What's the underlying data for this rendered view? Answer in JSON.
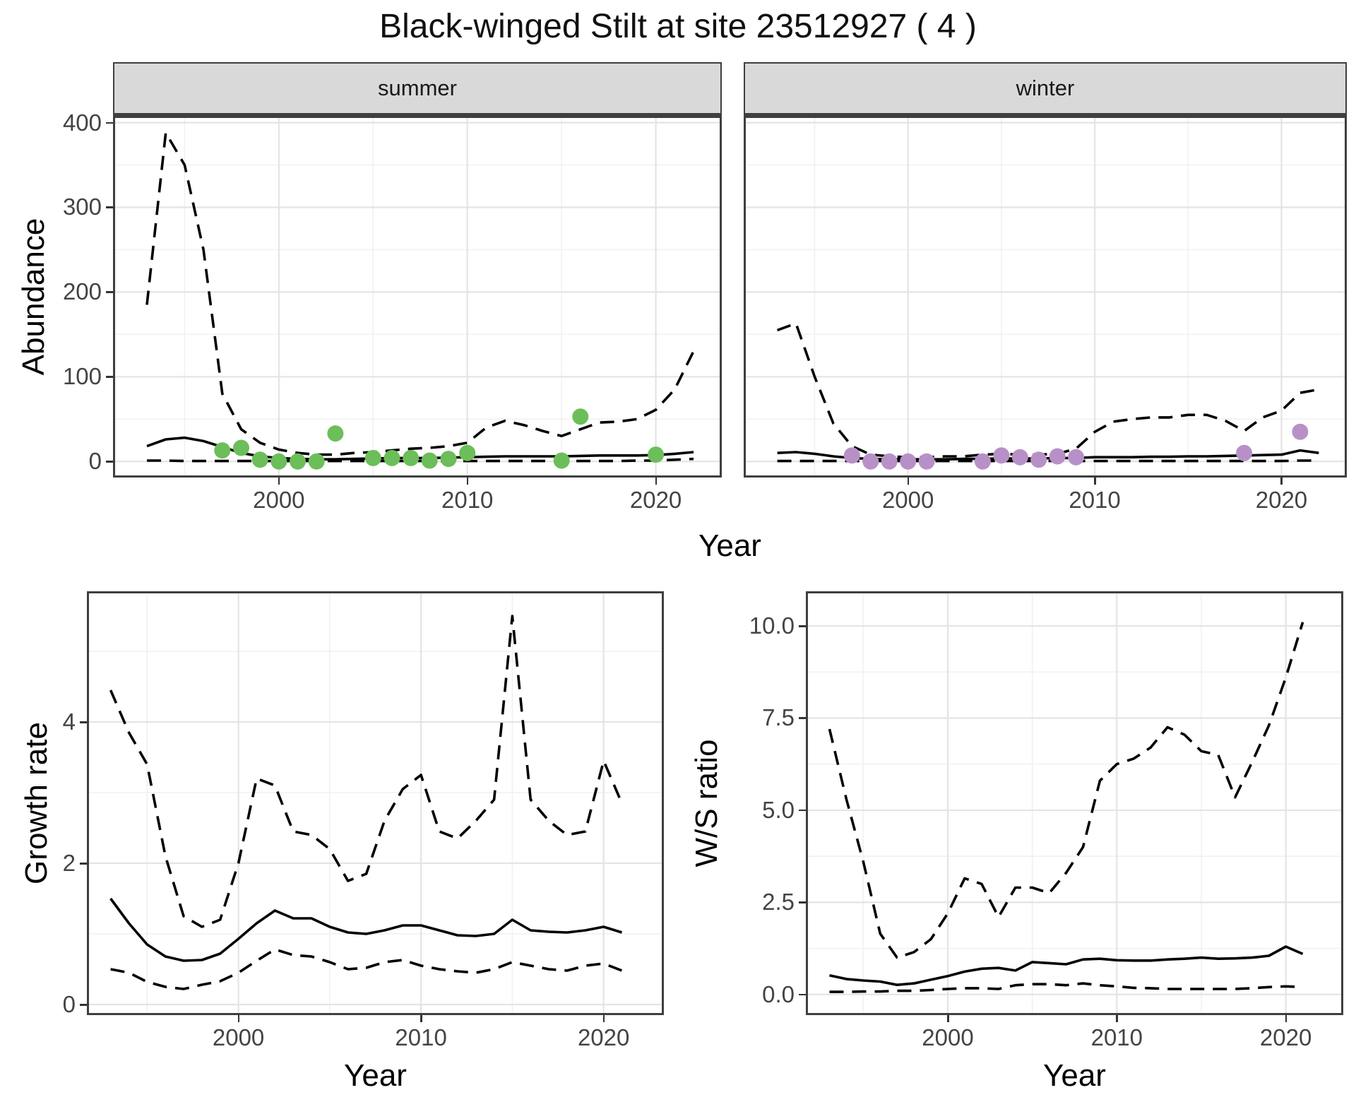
{
  "title": "Black-winged Stilt at site 23512927 ( 4 )",
  "top": {
    "ylabel": "Abundance",
    "xlabel": "Year",
    "facets": [
      "summer",
      "winter"
    ]
  },
  "bottom_left": {
    "ylabel": "Growth rate",
    "xlabel": "Year"
  },
  "bottom_right": {
    "ylabel": "W/S ratio",
    "xlabel": "Year"
  },
  "style": {
    "line_color": "#000000",
    "grid_major": "#E4E4E4",
    "grid_minor": "#F1F1F1",
    "panel_border": "#3f3f3f",
    "strip_bg": "#D9D9D9",
    "tick_color": "#333333",
    "tick_label_color": "#444444",
    "summer_point": "#6CBE5A",
    "winter_point": "#B890C8"
  },
  "chart_data": [
    {
      "id": "abundance_summer",
      "type": "line",
      "facet": "summer",
      "xlabel": "Year",
      "ylabel": "Abundance",
      "xlim": [
        1991.2,
        2023.5
      ],
      "ylim": [
        -19,
        408
      ],
      "x_ticks": [
        2000,
        2010,
        2020
      ],
      "x_tick_labels": [
        "2000",
        "2010",
        "2020"
      ],
      "x_minor": [
        1995,
        2005,
        2015
      ],
      "y_ticks": [
        0,
        100,
        200,
        300,
        400
      ],
      "y_tick_labels": [
        "0",
        "100",
        "200",
        "300",
        "400"
      ],
      "y_minor": [
        50,
        150,
        250,
        350
      ],
      "y_axis": true,
      "x": [
        1993,
        1994,
        1995,
        1996,
        1997,
        1998,
        1999,
        2000,
        2001,
        2002,
        2003,
        2004,
        2005,
        2006,
        2007,
        2008,
        2009,
        2010,
        2011,
        2012,
        2013,
        2014,
        2015,
        2016,
        2017,
        2018,
        2019,
        2020,
        2021,
        2022
      ],
      "series": [
        {
          "name": "lower_ci",
          "style": "dashed",
          "values": [
            1,
            1,
            0.5,
            0.5,
            0.5,
            0.5,
            0.5,
            0.5,
            0.5,
            0.5,
            0.5,
            0.5,
            0.5,
            0.5,
            0.5,
            0.5,
            0.5,
            0.5,
            0.5,
            0.5,
            0.5,
            0.5,
            0.5,
            0.5,
            0.5,
            0.5,
            1,
            1,
            2,
            3
          ]
        },
        {
          "name": "upper_ci",
          "style": "dashed",
          "values": [
            185,
            388,
            350,
            250,
            80,
            38,
            22,
            14,
            10,
            8,
            8,
            10,
            11,
            13,
            15,
            16,
            18,
            22,
            40,
            48,
            43,
            36,
            30,
            38,
            46,
            47,
            50,
            61,
            85,
            130
          ]
        },
        {
          "name": "median",
          "style": "solid",
          "values": [
            18,
            26,
            28,
            24,
            17,
            10,
            6,
            4,
            3,
            2.5,
            2.5,
            3,
            3.5,
            4,
            4,
            4,
            4.5,
            5,
            5.5,
            6,
            6,
            6,
            6,
            6.5,
            7,
            7,
            7,
            7.5,
            9,
            11
          ]
        }
      ],
      "points": {
        "name": "observed_counts",
        "color_key": "summer_point",
        "x": [
          1997,
          1998,
          1999,
          2000,
          2001,
          2002,
          2003,
          2005,
          2006,
          2007,
          2008,
          2009,
          2010,
          2015,
          2016,
          2020
        ],
        "y": [
          13,
          16,
          2,
          0,
          0,
          0,
          33,
          4,
          4,
          4,
          1,
          3,
          10,
          1,
          53,
          8
        ]
      }
    },
    {
      "id": "abundance_winter",
      "type": "line",
      "facet": "winter",
      "xlabel": "Year",
      "ylabel": "Abundance",
      "xlim": [
        1991.2,
        2023.5
      ],
      "ylim": [
        -19,
        408
      ],
      "x_ticks": [
        2000,
        2010,
        2020
      ],
      "x_tick_labels": [
        "2000",
        "2010",
        "2020"
      ],
      "x_minor": [
        1995,
        2005,
        2015
      ],
      "y_ticks": [
        0,
        100,
        200,
        300,
        400
      ],
      "y_tick_labels": [
        "0",
        "100",
        "200",
        "300",
        "400"
      ],
      "y_minor": [
        50,
        150,
        250,
        350
      ],
      "y_axis": false,
      "x": [
        1993,
        1994,
        1995,
        1996,
        1997,
        1998,
        1999,
        2000,
        2001,
        2002,
        2003,
        2004,
        2005,
        2006,
        2007,
        2008,
        2009,
        2010,
        2011,
        2012,
        2013,
        2014,
        2015,
        2016,
        2017,
        2018,
        2019,
        2020,
        2021,
        2022
      ],
      "series": [
        {
          "name": "lower_ci",
          "style": "dashed",
          "values": [
            0.5,
            0.5,
            0.5,
            0.5,
            0.5,
            0.5,
            0.5,
            0.5,
            0.5,
            0.5,
            0.5,
            0.5,
            0.5,
            0.5,
            0.5,
            0.5,
            0.5,
            0.5,
            0.5,
            0.5,
            0.5,
            0.5,
            0.5,
            0.5,
            0.5,
            0.5,
            0.5,
            0.5,
            1,
            1
          ]
        },
        {
          "name": "upper_ci",
          "style": "dashed",
          "values": [
            155,
            163,
            100,
            45,
            18,
            8,
            6,
            5,
            5,
            6,
            6,
            8,
            9,
            8,
            8,
            9,
            15,
            35,
            47,
            50,
            52,
            52,
            55,
            55,
            48,
            36,
            52,
            60,
            81,
            85
          ]
        },
        {
          "name": "median",
          "style": "solid",
          "values": [
            10,
            11,
            9,
            6,
            4,
            3,
            2.5,
            2.5,
            2.5,
            2.5,
            3,
            3,
            3.5,
            3.5,
            3.5,
            4,
            4,
            5,
            5,
            5,
            5.5,
            5.5,
            6,
            6,
            6.5,
            7,
            7.5,
            8,
            13,
            10
          ]
        }
      ],
      "points": {
        "name": "observed_counts",
        "color_key": "winter_point",
        "x": [
          1997,
          1998,
          1999,
          2000,
          2001,
          2004,
          2005,
          2006,
          2007,
          2008,
          2009,
          2018,
          2021
        ],
        "y": [
          7,
          0,
          0,
          0,
          0,
          0,
          7,
          5,
          2,
          6,
          5,
          10,
          35
        ]
      }
    },
    {
      "id": "growth",
      "type": "line",
      "xlabel": "Year",
      "ylabel": "Growth rate",
      "xlim": [
        1991.7,
        2023.3
      ],
      "ylim": [
        -0.15,
        5.85
      ],
      "x_ticks": [
        2000,
        2010,
        2020
      ],
      "x_tick_labels": [
        "2000",
        "2010",
        "2020"
      ],
      "x_minor": [
        1995,
        2005,
        2015
      ],
      "y_ticks": [
        0,
        2,
        4
      ],
      "y_tick_labels": [
        "0",
        "2",
        "4"
      ],
      "y_minor": [
        1,
        3,
        5
      ],
      "y_axis": true,
      "x": [
        1993,
        1994,
        1995,
        1996,
        1997,
        1998,
        1999,
        2000,
        2001,
        2002,
        2003,
        2004,
        2005,
        2006,
        2007,
        2008,
        2009,
        2010,
        2011,
        2012,
        2013,
        2014,
        2015,
        2016,
        2017,
        2018,
        2019,
        2020,
        2021
      ],
      "series": [
        {
          "name": "lower_ci",
          "style": "dashed",
          "values": [
            0.5,
            0.45,
            0.32,
            0.25,
            0.22,
            0.28,
            0.33,
            0.45,
            0.62,
            0.78,
            0.7,
            0.68,
            0.6,
            0.5,
            0.52,
            0.6,
            0.63,
            0.55,
            0.5,
            0.47,
            0.45,
            0.5,
            0.6,
            0.55,
            0.5,
            0.48,
            0.55,
            0.58,
            0.48
          ]
        },
        {
          "name": "upper_ci",
          "style": "dashed",
          "values": [
            4.45,
            3.85,
            3.4,
            2.1,
            1.25,
            1.1,
            1.2,
            2.0,
            3.2,
            3.1,
            2.45,
            2.4,
            2.2,
            1.75,
            1.85,
            2.6,
            3.05,
            3.25,
            2.45,
            2.35,
            2.6,
            2.9,
            5.5,
            2.9,
            2.6,
            2.4,
            2.45,
            3.45,
            2.85
          ]
        },
        {
          "name": "median",
          "style": "solid",
          "values": [
            1.5,
            1.15,
            0.85,
            0.68,
            0.62,
            0.63,
            0.72,
            0.93,
            1.15,
            1.33,
            1.22,
            1.22,
            1.1,
            1.02,
            1.0,
            1.05,
            1.12,
            1.12,
            1.05,
            0.98,
            0.97,
            1.0,
            1.2,
            1.05,
            1.03,
            1.02,
            1.05,
            1.1,
            1.02
          ]
        }
      ]
    },
    {
      "id": "ws_ratio",
      "type": "line",
      "xlabel": "Year",
      "ylabel": "W/S ratio",
      "xlim": [
        1991.6,
        2023.4
      ],
      "ylim": [
        -0.56,
        10.94
      ],
      "x_ticks": [
        2000,
        2010,
        2020
      ],
      "x_tick_labels": [
        "2000",
        "2010",
        "2020"
      ],
      "x_minor": [
        1995,
        2005,
        2015
      ],
      "y_ticks": [
        0,
        2.5,
        5,
        7.5,
        10
      ],
      "y_tick_labels": [
        "0.0",
        "2.5",
        "5.0",
        "7.5",
        "10.0"
      ],
      "y_minor": [
        1.25,
        3.75,
        6.25,
        8.75
      ],
      "y_axis": true,
      "x": [
        1993,
        1994,
        1995,
        1996,
        1997,
        1998,
        1999,
        2000,
        2001,
        2002,
        2003,
        2004,
        2005,
        2006,
        2007,
        2008,
        2009,
        2010,
        2011,
        2012,
        2013,
        2014,
        2015,
        2016,
        2017,
        2018,
        2019,
        2020,
        2021
      ],
      "series": [
        {
          "name": "lower_ci",
          "style": "dashed",
          "values": [
            0.07,
            0.07,
            0.08,
            0.08,
            0.1,
            0.1,
            0.12,
            0.15,
            0.17,
            0.17,
            0.15,
            0.25,
            0.28,
            0.28,
            0.25,
            0.3,
            0.25,
            0.22,
            0.18,
            0.17,
            0.15,
            0.15,
            0.15,
            0.15,
            0.15,
            0.17,
            0.2,
            0.22,
            0.2
          ]
        },
        {
          "name": "upper_ci",
          "style": "dashed",
          "values": [
            7.2,
            5.3,
            3.6,
            1.65,
            1.0,
            1.15,
            1.5,
            2.2,
            3.15,
            3.0,
            2.1,
            2.9,
            2.9,
            2.75,
            3.3,
            4.0,
            5.8,
            6.25,
            6.4,
            6.7,
            7.25,
            7.05,
            6.6,
            6.5,
            5.35,
            6.3,
            7.3,
            8.6,
            10.1
          ]
        },
        {
          "name": "median",
          "style": "solid",
          "values": [
            0.52,
            0.42,
            0.38,
            0.35,
            0.26,
            0.3,
            0.4,
            0.5,
            0.62,
            0.7,
            0.72,
            0.65,
            0.88,
            0.85,
            0.82,
            0.95,
            0.97,
            0.93,
            0.92,
            0.92,
            0.95,
            0.97,
            1.0,
            0.97,
            0.98,
            1.0,
            1.05,
            1.3,
            1.1
          ]
        }
      ]
    }
  ]
}
